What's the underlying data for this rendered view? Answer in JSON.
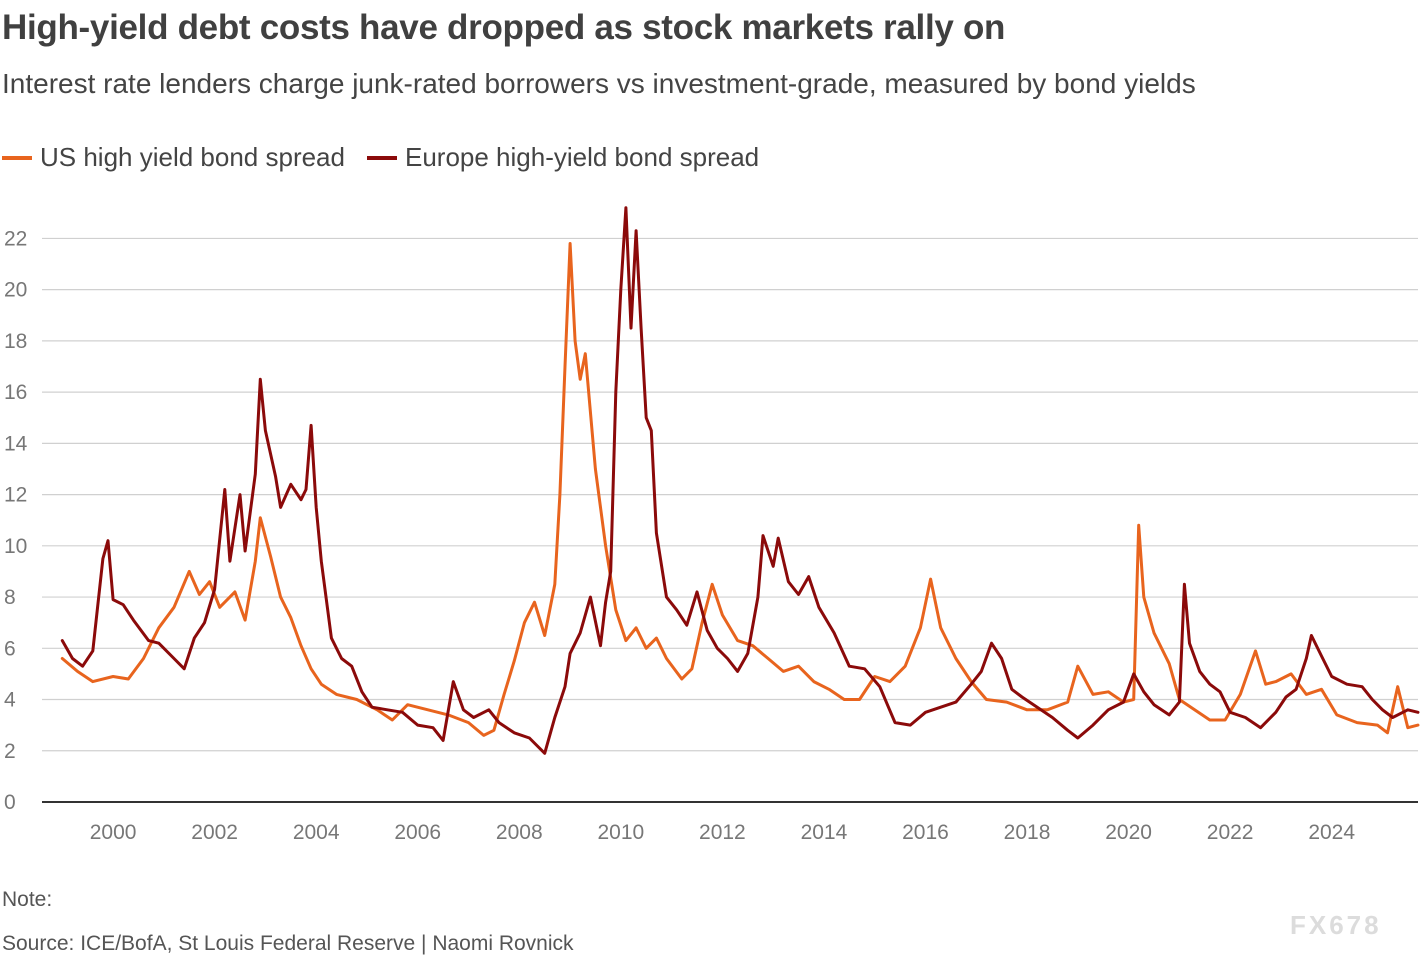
{
  "title": "High-yield debt costs have dropped as stock markets rally on",
  "subtitle": "Interest rate lenders charge junk-rated borrowers vs investment-grade, measured by bond yields",
  "note": "Note:",
  "source": "Source: ICE/BofA, St Louis Federal Reserve | Naomi Rovnick",
  "watermark": "FX678",
  "colors": {
    "us": "#e8641e",
    "europe": "#8b0a0a",
    "grid": "#d0d0d0",
    "axis": "#333333"
  },
  "chart_data": {
    "type": "line",
    "title": "High-yield debt costs have dropped as stock markets rally on",
    "xlabel": "",
    "ylabel": "",
    "xlim": [
      1998.6,
      2025.7
    ],
    "ylim": [
      0,
      23.5
    ],
    "x_ticks": [
      2000,
      2002,
      2004,
      2006,
      2008,
      2010,
      2012,
      2014,
      2016,
      2018,
      2020,
      2022,
      2024
    ],
    "y_ticks": [
      0,
      2,
      4,
      6,
      8,
      10,
      12,
      14,
      16,
      18,
      20,
      22
    ],
    "grid": true,
    "legend": "top-left",
    "series": [
      {
        "name": "US high yield bond spread",
        "color": "#e8641e",
        "points": [
          [
            1999.0,
            5.6
          ],
          [
            1999.3,
            5.1
          ],
          [
            1999.6,
            4.7
          ],
          [
            2000.0,
            4.9
          ],
          [
            2000.3,
            4.8
          ],
          [
            2000.6,
            5.6
          ],
          [
            2000.9,
            6.8
          ],
          [
            2001.2,
            7.6
          ],
          [
            2001.5,
            9.0
          ],
          [
            2001.7,
            8.1
          ],
          [
            2001.9,
            8.6
          ],
          [
            2002.1,
            7.6
          ],
          [
            2002.4,
            8.2
          ],
          [
            2002.6,
            7.1
          ],
          [
            2002.8,
            9.4
          ],
          [
            2002.9,
            11.1
          ],
          [
            2003.1,
            9.6
          ],
          [
            2003.3,
            8.0
          ],
          [
            2003.5,
            7.2
          ],
          [
            2003.7,
            6.1
          ],
          [
            2003.9,
            5.2
          ],
          [
            2004.1,
            4.6
          ],
          [
            2004.4,
            4.2
          ],
          [
            2004.8,
            4.0
          ],
          [
            2005.2,
            3.6
          ],
          [
            2005.5,
            3.2
          ],
          [
            2005.8,
            3.8
          ],
          [
            2006.2,
            3.6
          ],
          [
            2006.6,
            3.4
          ],
          [
            2007.0,
            3.1
          ],
          [
            2007.3,
            2.6
          ],
          [
            2007.5,
            2.8
          ],
          [
            2007.7,
            4.2
          ],
          [
            2007.9,
            5.5
          ],
          [
            2008.1,
            7.0
          ],
          [
            2008.3,
            7.8
          ],
          [
            2008.5,
            6.5
          ],
          [
            2008.7,
            8.5
          ],
          [
            2008.8,
            12.0
          ],
          [
            2008.9,
            17.0
          ],
          [
            2009.0,
            21.8
          ],
          [
            2009.1,
            18.0
          ],
          [
            2009.2,
            16.5
          ],
          [
            2009.3,
            17.5
          ],
          [
            2009.5,
            13.0
          ],
          [
            2009.7,
            10.0
          ],
          [
            2009.9,
            7.5
          ],
          [
            2010.1,
            6.3
          ],
          [
            2010.3,
            6.8
          ],
          [
            2010.5,
            6.0
          ],
          [
            2010.7,
            6.4
          ],
          [
            2010.9,
            5.6
          ],
          [
            2011.2,
            4.8
          ],
          [
            2011.4,
            5.2
          ],
          [
            2011.6,
            7.0
          ],
          [
            2011.8,
            8.5
          ],
          [
            2012.0,
            7.3
          ],
          [
            2012.3,
            6.3
          ],
          [
            2012.6,
            6.1
          ],
          [
            2012.9,
            5.6
          ],
          [
            2013.2,
            5.1
          ],
          [
            2013.5,
            5.3
          ],
          [
            2013.8,
            4.7
          ],
          [
            2014.1,
            4.4
          ],
          [
            2014.4,
            4.0
          ],
          [
            2014.7,
            4.0
          ],
          [
            2015.0,
            4.9
          ],
          [
            2015.3,
            4.7
          ],
          [
            2015.6,
            5.3
          ],
          [
            2015.9,
            6.8
          ],
          [
            2016.1,
            8.7
          ],
          [
            2016.3,
            6.8
          ],
          [
            2016.6,
            5.6
          ],
          [
            2016.9,
            4.7
          ],
          [
            2017.2,
            4.0
          ],
          [
            2017.6,
            3.9
          ],
          [
            2018.0,
            3.6
          ],
          [
            2018.4,
            3.6
          ],
          [
            2018.8,
            3.9
          ],
          [
            2019.0,
            5.3
          ],
          [
            2019.3,
            4.2
          ],
          [
            2019.6,
            4.3
          ],
          [
            2019.9,
            3.9
          ],
          [
            2020.1,
            4.0
          ],
          [
            2020.2,
            10.8
          ],
          [
            2020.3,
            8.0
          ],
          [
            2020.5,
            6.6
          ],
          [
            2020.8,
            5.4
          ],
          [
            2021.0,
            4.0
          ],
          [
            2021.3,
            3.6
          ],
          [
            2021.6,
            3.2
          ],
          [
            2021.9,
            3.2
          ],
          [
            2022.2,
            4.2
          ],
          [
            2022.5,
            5.9
          ],
          [
            2022.7,
            4.6
          ],
          [
            2022.9,
            4.7
          ],
          [
            2023.2,
            5.0
          ],
          [
            2023.5,
            4.2
          ],
          [
            2023.8,
            4.4
          ],
          [
            2024.1,
            3.4
          ],
          [
            2024.5,
            3.1
          ],
          [
            2024.9,
            3.0
          ],
          [
            2025.1,
            2.7
          ],
          [
            2025.3,
            4.5
          ],
          [
            2025.5,
            2.9
          ],
          [
            2025.7,
            3.0
          ]
        ]
      },
      {
        "name": "Europe high-yield bond spread",
        "color": "#8b0a0a",
        "points": [
          [
            1999.0,
            6.3
          ],
          [
            1999.2,
            5.6
          ],
          [
            1999.4,
            5.3
          ],
          [
            1999.6,
            5.9
          ],
          [
            1999.8,
            9.5
          ],
          [
            1999.9,
            10.2
          ],
          [
            2000.0,
            7.9
          ],
          [
            2000.2,
            7.7
          ],
          [
            2000.4,
            7.1
          ],
          [
            2000.7,
            6.3
          ],
          [
            2000.9,
            6.2
          ],
          [
            2001.2,
            5.6
          ],
          [
            2001.4,
            5.2
          ],
          [
            2001.6,
            6.4
          ],
          [
            2001.8,
            7.0
          ],
          [
            2002.0,
            8.3
          ],
          [
            2002.2,
            12.2
          ],
          [
            2002.3,
            9.4
          ],
          [
            2002.5,
            12.0
          ],
          [
            2002.6,
            9.8
          ],
          [
            2002.8,
            12.8
          ],
          [
            2002.9,
            16.5
          ],
          [
            2003.0,
            14.5
          ],
          [
            2003.2,
            12.7
          ],
          [
            2003.3,
            11.5
          ],
          [
            2003.5,
            12.4
          ],
          [
            2003.7,
            11.8
          ],
          [
            2003.8,
            12.2
          ],
          [
            2003.9,
            14.7
          ],
          [
            2004.0,
            11.5
          ],
          [
            2004.1,
            9.4
          ],
          [
            2004.3,
            6.4
          ],
          [
            2004.5,
            5.6
          ],
          [
            2004.7,
            5.3
          ],
          [
            2004.9,
            4.3
          ],
          [
            2005.1,
            3.7
          ],
          [
            2005.4,
            3.6
          ],
          [
            2005.7,
            3.5
          ],
          [
            2006.0,
            3.0
          ],
          [
            2006.3,
            2.9
          ],
          [
            2006.5,
            2.4
          ],
          [
            2006.7,
            4.7
          ],
          [
            2006.9,
            3.6
          ],
          [
            2007.1,
            3.3
          ],
          [
            2007.4,
            3.6
          ],
          [
            2007.6,
            3.1
          ],
          [
            2007.9,
            2.7
          ],
          [
            2008.2,
            2.5
          ],
          [
            2008.5,
            1.9
          ],
          [
            2008.7,
            3.3
          ],
          [
            2008.9,
            4.5
          ],
          [
            2009.0,
            5.8
          ],
          [
            2009.2,
            6.6
          ],
          [
            2009.4,
            8.0
          ],
          [
            2009.6,
            6.1
          ],
          [
            2009.7,
            7.8
          ],
          [
            2009.8,
            9.0
          ],
          [
            2009.9,
            16.0
          ],
          [
            2010.0,
            20.0
          ],
          [
            2010.1,
            23.2
          ],
          [
            2010.2,
            18.5
          ],
          [
            2010.3,
            22.3
          ],
          [
            2010.4,
            18.5
          ],
          [
            2010.5,
            15.0
          ],
          [
            2010.6,
            14.5
          ],
          [
            2010.7,
            10.5
          ],
          [
            2010.9,
            8.0
          ],
          [
            2011.1,
            7.5
          ],
          [
            2011.3,
            6.9
          ],
          [
            2011.5,
            8.2
          ],
          [
            2011.7,
            6.7
          ],
          [
            2011.9,
            6.0
          ],
          [
            2012.1,
            5.6
          ],
          [
            2012.3,
            5.1
          ],
          [
            2012.5,
            5.8
          ],
          [
            2012.7,
            8.0
          ],
          [
            2012.8,
            10.4
          ],
          [
            2013.0,
            9.2
          ],
          [
            2013.1,
            10.3
          ],
          [
            2013.3,
            8.6
          ],
          [
            2013.5,
            8.1
          ],
          [
            2013.7,
            8.8
          ],
          [
            2013.9,
            7.6
          ],
          [
            2014.2,
            6.6
          ],
          [
            2014.5,
            5.3
          ],
          [
            2014.8,
            5.2
          ],
          [
            2015.1,
            4.5
          ],
          [
            2015.4,
            3.1
          ],
          [
            2015.7,
            3.0
          ],
          [
            2016.0,
            3.5
          ],
          [
            2016.3,
            3.7
          ],
          [
            2016.6,
            3.9
          ],
          [
            2016.9,
            4.6
          ],
          [
            2017.1,
            5.1
          ],
          [
            2017.3,
            6.2
          ],
          [
            2017.5,
            5.6
          ],
          [
            2017.7,
            4.4
          ],
          [
            2017.9,
            4.1
          ],
          [
            2018.2,
            3.7
          ],
          [
            2018.5,
            3.3
          ],
          [
            2018.8,
            2.8
          ],
          [
            2019.0,
            2.5
          ],
          [
            2019.3,
            3.0
          ],
          [
            2019.6,
            3.6
          ],
          [
            2019.9,
            3.9
          ],
          [
            2020.1,
            5.0
          ],
          [
            2020.3,
            4.3
          ],
          [
            2020.5,
            3.8
          ],
          [
            2020.8,
            3.4
          ],
          [
            2021.0,
            3.9
          ],
          [
            2021.1,
            8.5
          ],
          [
            2021.2,
            6.2
          ],
          [
            2021.4,
            5.1
          ],
          [
            2021.6,
            4.6
          ],
          [
            2021.8,
            4.3
          ],
          [
            2022.0,
            3.5
          ],
          [
            2022.3,
            3.3
          ],
          [
            2022.6,
            2.9
          ],
          [
            2022.9,
            3.5
          ],
          [
            2023.1,
            4.1
          ],
          [
            2023.3,
            4.4
          ],
          [
            2023.5,
            5.6
          ],
          [
            2023.6,
            6.5
          ],
          [
            2023.8,
            5.7
          ],
          [
            2024.0,
            4.9
          ],
          [
            2024.3,
            4.6
          ],
          [
            2024.6,
            4.5
          ],
          [
            2024.8,
            4.0
          ],
          [
            2025.0,
            3.6
          ],
          [
            2025.2,
            3.3
          ],
          [
            2025.5,
            3.6
          ],
          [
            2025.7,
            3.5
          ]
        ]
      }
    ]
  }
}
